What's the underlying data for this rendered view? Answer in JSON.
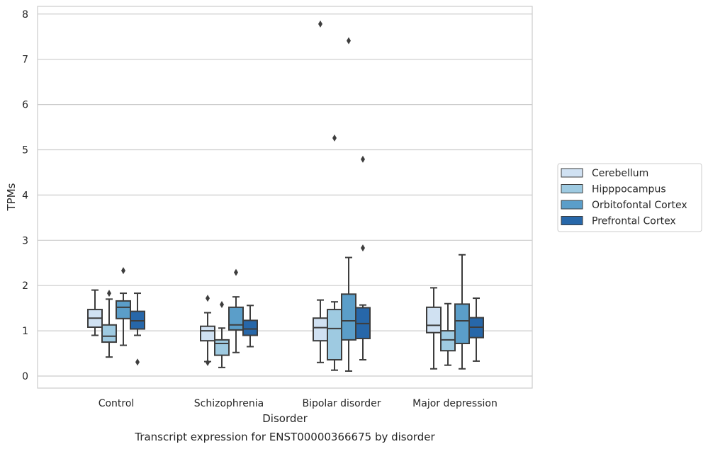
{
  "chart_data": {
    "type": "box",
    "title": "Transcript expression for ENST00000366675 by disorder",
    "xlabel": "Disorder",
    "ylabel": "TPMs",
    "ylim": [
      -0.25,
      8.2
    ],
    "yticks": [
      0,
      1,
      2,
      3,
      4,
      5,
      6,
      7,
      8
    ],
    "grid": true,
    "legend_placement": "right",
    "categories": [
      "Control",
      "Schizophrenia",
      "Bipolar disorder",
      "Major depression"
    ],
    "series": [
      {
        "name": "Cerebellum",
        "color": "#d0e1f2",
        "boxes": [
          {
            "whislo": 0.9,
            "q1": 1.08,
            "med": 1.28,
            "q3": 1.47,
            "whishi": 1.9,
            "fliers": []
          },
          {
            "whislo": 0.32,
            "q1": 0.78,
            "med": 1.0,
            "q3": 1.1,
            "whishi": 1.4,
            "fliers": [
              1.72,
              0.3
            ]
          },
          {
            "whislo": 0.3,
            "q1": 0.78,
            "med": 1.07,
            "q3": 1.28,
            "whishi": 1.68,
            "fliers": [
              7.78
            ]
          },
          {
            "whislo": 0.16,
            "q1": 0.96,
            "med": 1.12,
            "q3": 1.52,
            "whishi": 1.95,
            "fliers": []
          }
        ]
      },
      {
        "name": "Hipppocampus",
        "color": "#9ecae1",
        "boxes": [
          {
            "whislo": 0.42,
            "q1": 0.75,
            "med": 0.88,
            "q3": 1.13,
            "whishi": 1.7,
            "fliers": [
              1.83
            ]
          },
          {
            "whislo": 0.19,
            "q1": 0.46,
            "med": 0.72,
            "q3": 0.8,
            "whishi": 1.06,
            "fliers": [
              1.58
            ]
          },
          {
            "whislo": 0.13,
            "q1": 0.36,
            "med": 1.05,
            "q3": 1.47,
            "whishi": 1.64,
            "fliers": [
              5.26
            ]
          },
          {
            "whislo": 0.24,
            "q1": 0.56,
            "med": 0.8,
            "q3": 1.0,
            "whishi": 1.6,
            "fliers": []
          }
        ]
      },
      {
        "name": "Orbitofontal Cortex",
        "color": "#5b9ec9",
        "boxes": [
          {
            "whislo": 0.68,
            "q1": 1.27,
            "med": 1.52,
            "q3": 1.66,
            "whishi": 1.83,
            "fliers": [
              2.33
            ]
          },
          {
            "whislo": 0.52,
            "q1": 1.02,
            "med": 1.13,
            "q3": 1.52,
            "whishi": 1.75,
            "fliers": [
              2.29
            ]
          },
          {
            "whislo": 0.11,
            "q1": 0.8,
            "med": 1.22,
            "q3": 1.81,
            "whishi": 2.62,
            "fliers": [
              7.41
            ]
          },
          {
            "whislo": 0.16,
            "q1": 0.72,
            "med": 1.22,
            "q3": 1.59,
            "whishi": 2.68,
            "fliers": []
          }
        ]
      },
      {
        "name": "Prefrontal Cortex",
        "color": "#2767a9",
        "boxes": [
          {
            "whislo": 0.9,
            "q1": 1.04,
            "med": 1.22,
            "q3": 1.43,
            "whishi": 1.83,
            "fliers": [
              0.31
            ]
          },
          {
            "whislo": 0.65,
            "q1": 0.9,
            "med": 1.04,
            "q3": 1.23,
            "whishi": 1.56,
            "fliers": []
          },
          {
            "whislo": 0.36,
            "q1": 0.83,
            "med": 1.16,
            "q3": 1.51,
            "whishi": 1.57,
            "fliers": [
              4.79,
              2.83
            ]
          },
          {
            "whislo": 0.33,
            "q1": 0.85,
            "med": 1.08,
            "q3": 1.29,
            "whishi": 1.72,
            "fliers": []
          }
        ]
      }
    ]
  }
}
